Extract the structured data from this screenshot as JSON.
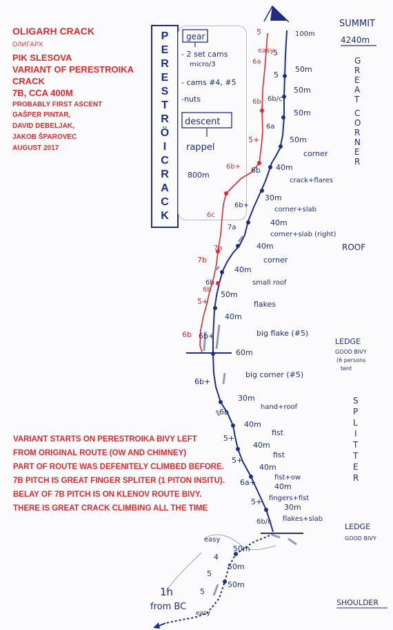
{
  "info": {
    "title": "OLIGARH CRACK",
    "cyrillic": "ОЛИГАРХ",
    "peak": "PIK SLESOVA",
    "variant_of": "VARIANT OF PERESTROIKA CRACK",
    "grade": "7B, CCA 400M",
    "ascent_note": "PROBABLY FIRST ASCENT",
    "climbers": [
      "GAŠPER PINTAR,",
      "DAVID DEBELJAK,",
      "JAKOB ŠPAROVEC"
    ],
    "date": "AUGUST 2017"
  },
  "variant_text": [
    "VARIANT STARTS ON PERESTROIKA BIVY LEFT",
    "FROM ORIGINAL ROUTE (OW AND CHIMNEY)",
    "PART OF ROUTE WAS DEFENITELY CLIMBED BEFORE.",
    "7B PITCH IS GREAT FINGER SPLITER (1 PITON INSITU).",
    "BELAY OF 7B PITCH IS ON KLENOV ROUTE BIVY.",
    "THERE IS GREAT CRACK CLIMBING ALL THE TIME"
  ],
  "route_title_letters": [
    "P",
    "E",
    "R",
    "E",
    "S",
    "T",
    "R",
    "Ö",
    "I",
    "C",
    "R",
    "A",
    "C",
    "K"
  ],
  "gear": {
    "heading": "gear",
    "items": [
      "- 2 set cams",
      "micro/3",
      "- cams #4, #5",
      "-nuts"
    ],
    "descent_heading": "descent",
    "descent_method": "rappel",
    "descent_length": "800m"
  },
  "summit": {
    "label": "SUMMIT",
    "altitude": "4240m"
  },
  "side_labels": {
    "great_corner": [
      "G",
      "R",
      "E",
      "A",
      "T",
      "",
      "C",
      "O",
      "R",
      "N",
      "E",
      "R"
    ],
    "roof": "ROOF",
    "ledge_upper": "LEDGE",
    "ledge_upper_note": [
      "GOOD BIVY",
      "(6 persons",
      "tent"
    ],
    "splitter": [
      "S",
      "P",
      "L",
      "I",
      "T",
      "T",
      "E",
      "R"
    ],
    "ledge_lower": "LEDGE",
    "ledge_lower_note": "GOOD BIVY",
    "shoulder": "SHOULDER"
  },
  "approach": {
    "time": "1h",
    "from": "from BC"
  },
  "pitch_lengths": [
    "100m",
    "50m",
    "50m",
    "50m",
    "50m",
    "40m",
    "30m",
    "40m",
    "40m",
    "40m",
    "50m",
    "40m",
    "60m",
    "30m",
    "40m",
    "40m",
    "40m",
    "40m",
    "30m",
    "50m",
    "50m",
    "50m"
  ],
  "pitch_descriptions": [
    "corner",
    "crack+flares",
    "corner+slab",
    "corner+slab (right)",
    "corner",
    "small roof",
    "flakes",
    "big flake (#5)",
    "big corner (#5)",
    "hand+roof",
    "fist",
    "fist",
    "fist+ow",
    "fingers+fist",
    "flakes+slab"
  ],
  "original_grades": [
    "5",
    "5",
    "6b/c",
    "6a",
    "6b",
    "6b+",
    "6b+",
    "6b",
    "6b+",
    "6b",
    "5+",
    "5+",
    "6a+",
    "5+",
    "6b/c",
    "easy",
    "4",
    "5",
    "5",
    "easy"
  ],
  "variant_grades": [
    "5",
    "easy",
    "6a",
    "6b",
    "5+",
    "6b+",
    "6c",
    "7a",
    "7b",
    "6b",
    "5+",
    "6b"
  ],
  "original_grades_mid": [
    "7a",
    "7a"
  ]
}
